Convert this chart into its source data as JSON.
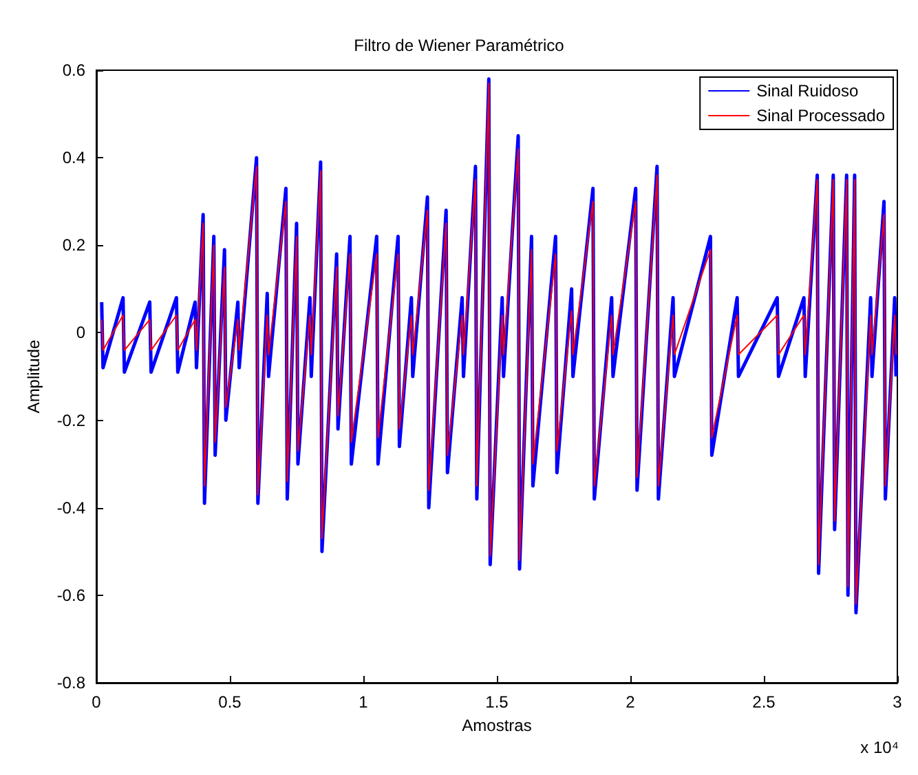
{
  "chart_data": {
    "type": "line",
    "title": "Filtro de Wiener Paramétrico",
    "xlabel": "Amostras",
    "ylabel": "Amplitude",
    "annotations": [
      "x 10⁴"
    ],
    "xlim": [
      0,
      3
    ],
    "xticks": [
      0,
      0.5,
      1,
      1.5,
      2,
      2.5,
      3
    ],
    "ylim": [
      -0.8,
      0.6
    ],
    "yticks": [
      -0.8,
      -0.6,
      -0.4,
      -0.2,
      0,
      0.2,
      0.4,
      0.6
    ],
    "grid": false,
    "legend": "top right",
    "line_style": "solid",
    "series": [
      {
        "name": "Sinal Ruidoso",
        "color": "#0000ff",
        "x": [
          0.02,
          0.025,
          0.1,
          0.105,
          0.2,
          0.205,
          0.3,
          0.305,
          0.37,
          0.375,
          0.4,
          0.405,
          0.44,
          0.445,
          0.48,
          0.485,
          0.53,
          0.535,
          0.6,
          0.605,
          0.64,
          0.645,
          0.71,
          0.715,
          0.75,
          0.755,
          0.8,
          0.805,
          0.84,
          0.845,
          0.9,
          0.905,
          0.95,
          0.955,
          1.05,
          1.055,
          1.13,
          1.135,
          1.18,
          1.185,
          1.24,
          1.245,
          1.31,
          1.315,
          1.37,
          1.375,
          1.42,
          1.425,
          1.47,
          1.475,
          1.52,
          1.525,
          1.58,
          1.585,
          1.63,
          1.635,
          1.72,
          1.725,
          1.78,
          1.785,
          1.86,
          1.865,
          1.93,
          1.935,
          2.02,
          2.025,
          2.1,
          2.105,
          2.16,
          2.165,
          2.3,
          2.305,
          2.4,
          2.405,
          2.55,
          2.555,
          2.65,
          2.655,
          2.7,
          2.705,
          2.76,
          2.765,
          2.81,
          2.815,
          2.84,
          2.845,
          2.9,
          2.905,
          2.95,
          2.955,
          2.99,
          2.995
        ],
        "values": [
          0.07,
          -0.08,
          0.08,
          -0.09,
          0.07,
          -0.09,
          0.08,
          -0.09,
          0.07,
          -0.08,
          0.27,
          -0.39,
          0.22,
          -0.28,
          0.19,
          -0.2,
          0.07,
          -0.08,
          0.4,
          -0.39,
          0.09,
          -0.1,
          0.33,
          -0.38,
          0.25,
          -0.3,
          0.08,
          -0.1,
          0.39,
          -0.5,
          0.18,
          -0.22,
          0.22,
          -0.3,
          0.22,
          -0.3,
          0.22,
          -0.26,
          0.08,
          -0.1,
          0.31,
          -0.4,
          0.28,
          -0.32,
          0.08,
          -0.1,
          0.38,
          -0.38,
          0.58,
          -0.53,
          0.08,
          -0.1,
          0.45,
          -0.54,
          0.22,
          -0.35,
          0.22,
          -0.32,
          0.1,
          -0.1,
          0.33,
          -0.38,
          0.08,
          -0.1,
          0.33,
          -0.36,
          0.38,
          -0.38,
          0.08,
          -0.1,
          0.22,
          -0.28,
          0.08,
          -0.1,
          0.08,
          -0.1,
          0.08,
          -0.1,
          0.36,
          -0.55,
          0.36,
          -0.45,
          0.36,
          -0.6,
          0.36,
          -0.64,
          0.08,
          -0.1,
          0.3,
          -0.38,
          0.08,
          -0.1
        ]
      },
      {
        "name": "Sinal Processado",
        "color": "#ff0000",
        "x": [
          0.02,
          0.025,
          0.1,
          0.105,
          0.2,
          0.205,
          0.3,
          0.305,
          0.37,
          0.375,
          0.4,
          0.405,
          0.44,
          0.445,
          0.48,
          0.485,
          0.53,
          0.535,
          0.6,
          0.605,
          0.64,
          0.645,
          0.71,
          0.715,
          0.75,
          0.755,
          0.8,
          0.805,
          0.84,
          0.845,
          0.9,
          0.905,
          0.95,
          0.955,
          1.05,
          1.055,
          1.13,
          1.135,
          1.18,
          1.185,
          1.24,
          1.245,
          1.31,
          1.315,
          1.37,
          1.375,
          1.42,
          1.425,
          1.47,
          1.475,
          1.52,
          1.525,
          1.58,
          1.585,
          1.63,
          1.635,
          1.72,
          1.725,
          1.78,
          1.785,
          1.86,
          1.865,
          1.93,
          1.935,
          2.02,
          2.025,
          2.1,
          2.105,
          2.16,
          2.165,
          2.3,
          2.305,
          2.4,
          2.405,
          2.55,
          2.555,
          2.65,
          2.655,
          2.7,
          2.705,
          2.76,
          2.765,
          2.81,
          2.815,
          2.84,
          2.845,
          2.9,
          2.905,
          2.95,
          2.955,
          2.99,
          2.995
        ],
        "values": [
          0.03,
          -0.04,
          0.04,
          -0.04,
          0.03,
          -0.04,
          0.04,
          -0.04,
          0.03,
          -0.04,
          0.25,
          -0.35,
          0.2,
          -0.25,
          0.15,
          -0.17,
          0.03,
          -0.04,
          0.38,
          -0.37,
          0.04,
          -0.05,
          0.3,
          -0.34,
          0.22,
          -0.27,
          0.04,
          -0.05,
          0.37,
          -0.47,
          0.15,
          -0.19,
          0.18,
          -0.25,
          0.18,
          -0.24,
          0.18,
          -0.22,
          0.04,
          -0.05,
          0.28,
          -0.36,
          0.25,
          -0.28,
          0.04,
          -0.05,
          0.35,
          -0.35,
          0.57,
          -0.51,
          0.04,
          -0.05,
          0.42,
          -0.52,
          0.19,
          -0.3,
          0.18,
          -0.27,
          0.05,
          -0.05,
          0.3,
          -0.35,
          0.04,
          -0.05,
          0.3,
          -0.33,
          0.36,
          -0.35,
          0.04,
          -0.05,
          0.19,
          -0.24,
          0.04,
          -0.05,
          0.04,
          -0.05,
          0.04,
          -0.05,
          0.35,
          -0.53,
          0.35,
          -0.43,
          0.35,
          -0.58,
          0.35,
          -0.62,
          0.04,
          -0.05,
          0.27,
          -0.35,
          0.04,
          -0.05
        ]
      }
    ]
  }
}
